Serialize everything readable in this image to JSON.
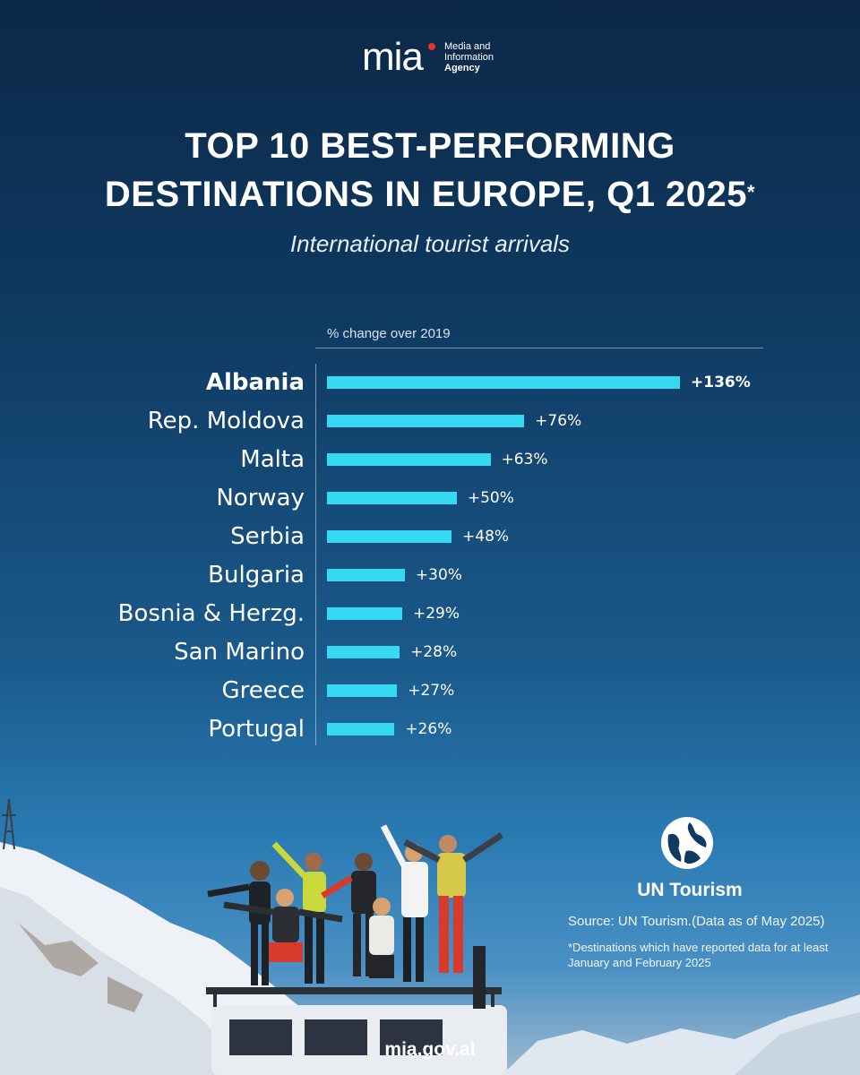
{
  "brand": {
    "logo_text": "mia",
    "line1": "Media and",
    "line2": "Information",
    "line3": "Agency"
  },
  "header": {
    "title_line1": "TOP 10 BEST-PERFORMING",
    "title_line2": "DESTINATIONS IN EUROPE, Q1 2025",
    "title_mark": "*",
    "subtitle": "International tourist arrivals"
  },
  "chart_data": {
    "type": "bar",
    "orientation": "horizontal",
    "title": "TOP 10 BEST-PERFORMING DESTINATIONS IN EUROPE, Q1 2025*",
    "subtitle": "International tourist arrivals",
    "xlabel": "% change over 2019",
    "ylabel": "",
    "categories": [
      "Albania",
      "Rep. Moldova",
      "Malta",
      "Norway",
      "Serbia",
      "Bulgaria",
      "Bosnia & Herzg.",
      "San Marino",
      "Greece",
      "Portugal"
    ],
    "values": [
      136,
      76,
      63,
      50,
      48,
      30,
      29,
      28,
      27,
      26
    ],
    "value_labels": [
      "+136%",
      "+76%",
      "+63%",
      "+50%",
      "+48%",
      "+30%",
      "+29%",
      "+28%",
      "+27%",
      "+26%"
    ],
    "highlight": "Albania",
    "xlim": [
      0,
      136
    ],
    "grid": false,
    "legend": "none",
    "bar_color": "#36d9f2"
  },
  "colors": {
    "bar": "#36d9f2",
    "background_top": "#0b2847",
    "brand_dot": "#e8342a"
  },
  "un": {
    "name": "UN Tourism",
    "logo_icon": "un-tourism-globe-icon"
  },
  "source": "Source: UN Tourism.(Data as of May 2025)",
  "note": "*Destinations which have reported data for at least January and February 2025",
  "footer": "mia.gov.al"
}
